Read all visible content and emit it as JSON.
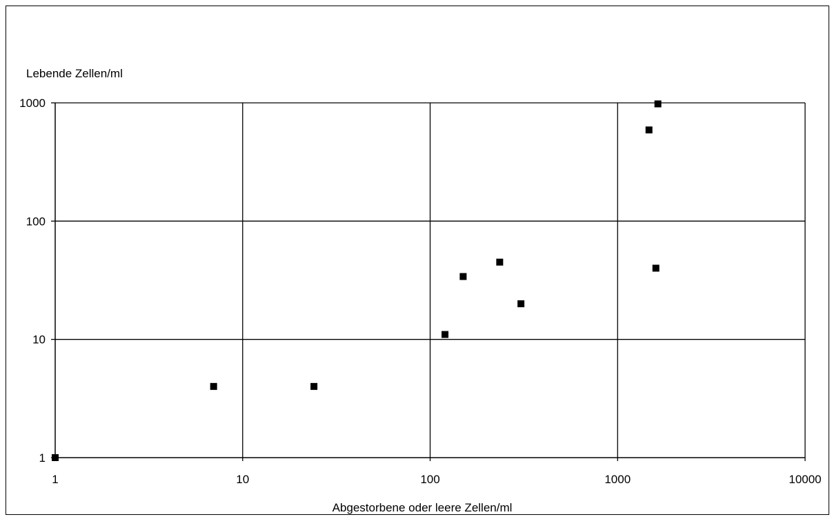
{
  "chart_data": {
    "type": "scatter",
    "xlabel": "Abgestorbene oder leere Zellen/ml",
    "ylabel": "Lebende Zellen/ml",
    "x_scale": "log",
    "y_scale": "log",
    "xlim": [
      1,
      10000
    ],
    "ylim": [
      1,
      1000
    ],
    "x_ticks": [
      "1",
      "10",
      "100",
      "1000",
      "10000"
    ],
    "y_ticks": [
      "1",
      "10",
      "100",
      "1000"
    ],
    "grid": true,
    "marker": "square",
    "marker_color": "#000000",
    "points": [
      {
        "x": 1,
        "y": 1
      },
      {
        "x": 7,
        "y": 4
      },
      {
        "x": 24,
        "y": 4
      },
      {
        "x": 120,
        "y": 11
      },
      {
        "x": 150,
        "y": 34
      },
      {
        "x": 235,
        "y": 45
      },
      {
        "x": 305,
        "y": 20
      },
      {
        "x": 1470,
        "y": 590
      },
      {
        "x": 1600,
        "y": 40
      },
      {
        "x": 1640,
        "y": 980
      }
    ]
  }
}
